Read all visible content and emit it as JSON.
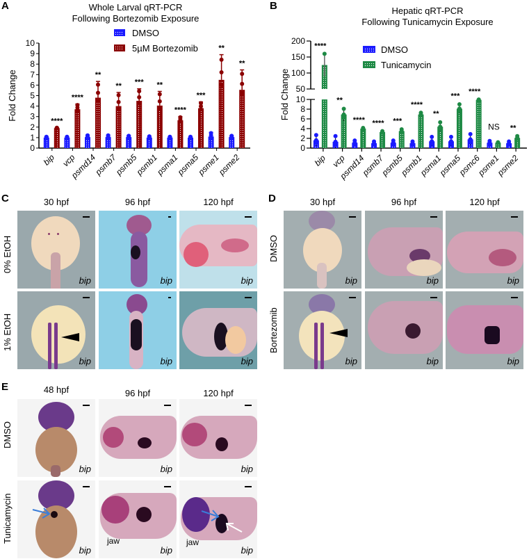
{
  "panels": {
    "A": {
      "letter": "A"
    },
    "B": {
      "letter": "B"
    },
    "C": {
      "letter": "C",
      "col_labels": [
        "30 hpf",
        "96 hpf",
        "120 hpf"
      ],
      "row_labels": [
        "0% EtOH",
        "1% EtOH"
      ],
      "gene": "bip"
    },
    "D": {
      "letter": "D",
      "col_labels": [
        "30 hpf",
        "96 hpf",
        "120 hpf"
      ],
      "row_labels": [
        "DMSO",
        "Bortezomib"
      ],
      "gene": "bip"
    },
    "E": {
      "letter": "E",
      "col_labels": [
        "48 hpf",
        "96 hpf",
        "120 hpf"
      ],
      "row_labels": [
        "DMSO",
        "Tunicamycin"
      ],
      "gene": "bip",
      "jaw_label": "jaw"
    }
  },
  "chart_data": [
    {
      "type": "bar",
      "title": "Whole Larval qRT-PCR\nFollowing Bortezomib Exposure",
      "title_lines": [
        "Whole Larval qRT-PCR",
        "Following Bortezomib Exposure"
      ],
      "xlabel": "",
      "ylabel": "Fold Change",
      "ylim": [
        0,
        10
      ],
      "yticks": [
        0,
        1,
        2,
        3,
        4,
        5,
        6,
        7,
        8,
        9,
        10
      ],
      "categories": [
        "bip",
        "vcp",
        "psmd14",
        "psmb7",
        "psmb5",
        "psmb1",
        "psma1",
        "psma5",
        "psme1",
        "psme2"
      ],
      "series": [
        {
          "name": "DMSO",
          "color": "#1a1aff",
          "values": [
            1.0,
            1.0,
            1.05,
            1.05,
            1.05,
            1.0,
            1.0,
            1.0,
            1.1,
            1.05
          ],
          "err": [
            0.1,
            0.1,
            0.2,
            0.2,
            0.15,
            0.15,
            0.1,
            0.1,
            0.4,
            0.15
          ]
        },
        {
          "name": "5µM Bortezomib",
          "color": "#8b0000",
          "values": [
            1.9,
            3.7,
            4.8,
            4.0,
            4.5,
            4.05,
            2.65,
            3.8,
            6.5,
            5.55
          ],
          "err": [
            0.05,
            0.5,
            1.55,
            1.3,
            1.15,
            1.35,
            0.35,
            0.6,
            2.4,
            1.9
          ]
        }
      ],
      "significance": [
        "****",
        "****",
        "**",
        "**",
        "***",
        "**",
        "****",
        "***",
        "**",
        "**"
      ],
      "legend": [
        "DMSO",
        "5µM Bortezomib"
      ],
      "legend_position": "top-center",
      "grid": false
    },
    {
      "type": "bar",
      "title": "Hepatic qRT-PCR\nFollowing Tunicamycin Exposure",
      "title_lines": [
        "Hepatic qRT-PCR",
        "Following Tunicamycin Exposure"
      ],
      "xlabel": "",
      "ylabel": "Fold Change",
      "ylim": [
        0,
        200
      ],
      "axis_break": {
        "lower": [
          0,
          10
        ],
        "upper": [
          50,
          200
        ]
      },
      "yticks_lower": [
        0,
        2,
        4,
        6,
        8,
        10
      ],
      "yticks_upper": [
        50,
        100,
        150,
        200
      ],
      "categories": [
        "bip",
        "vcp",
        "psmd14",
        "psmb7",
        "psmb5",
        "psmb1",
        "psma1",
        "psma5",
        "psmc6",
        "psme1",
        "psme2"
      ],
      "series": [
        {
          "name": "DMSO",
          "color": "#1a1aff",
          "values": [
            1.6,
            1.3,
            1.1,
            1.0,
            1.1,
            1.0,
            1.4,
            1.4,
            1.8,
            1.1,
            1.0
          ],
          "err": [
            1.2,
            1.3,
            0.5,
            0.4,
            0.5,
            0.4,
            1.0,
            1.0,
            1.2,
            0.4,
            0.4
          ]
        },
        {
          "name": "Tunicamycin",
          "color": "#1e8a45",
          "values": [
            125,
            6.9,
            4.0,
            3.3,
            3.5,
            6.9,
            4.4,
            8.1,
            9.9,
            1.1,
            2.1
          ],
          "err": [
            35,
            1.3,
            0.15,
            0.2,
            0.4,
            0.4,
            1.0,
            1.0,
            0.1,
            0.1,
            0.4
          ]
        }
      ],
      "significance": [
        "****",
        "**",
        "****",
        "****",
        "***",
        "****",
        "**",
        "***",
        "****",
        "NS",
        "**"
      ],
      "legend": [
        "DMSO",
        "Tunicamycin"
      ],
      "legend_position": "top-center",
      "grid": false
    }
  ]
}
